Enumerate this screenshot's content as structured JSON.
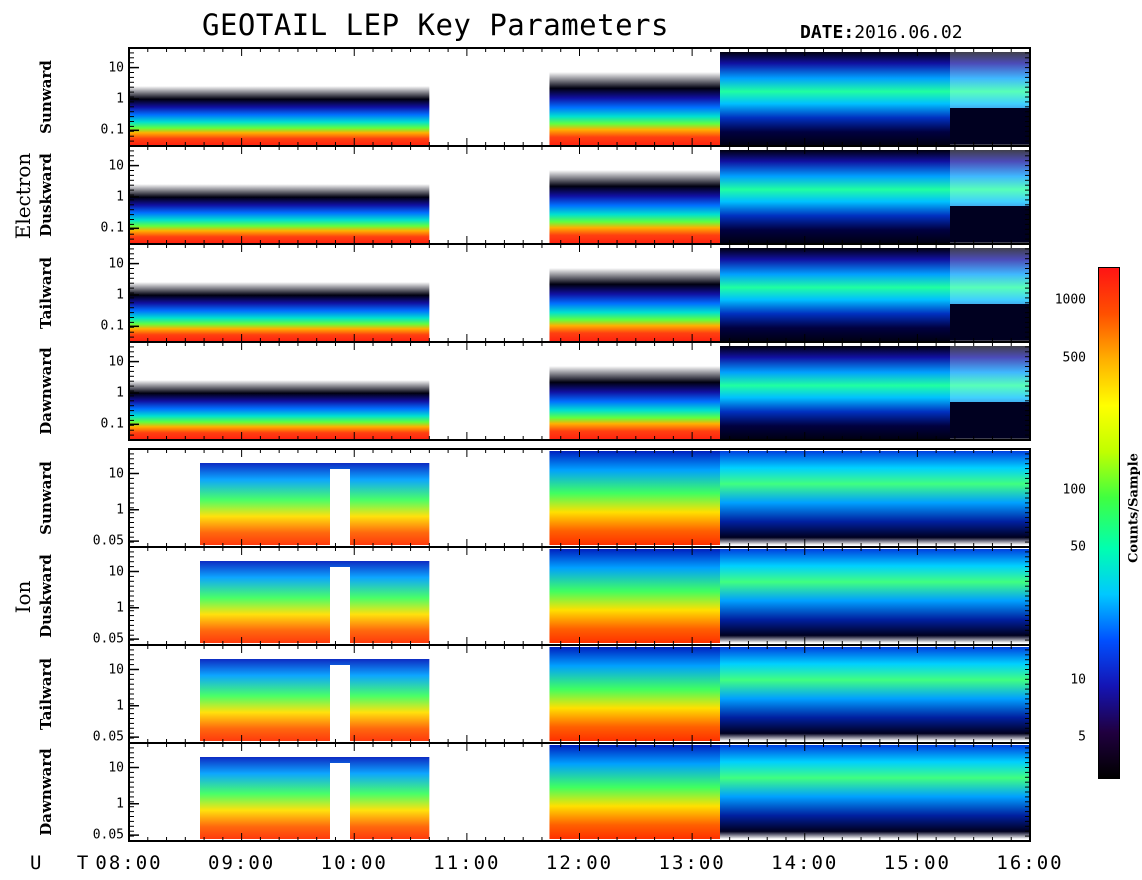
{
  "title": "GEOTAIL LEP Key Parameters",
  "date_label": "DATE:",
  "date_value": "2016.06.02",
  "ut_label": "U T",
  "groups": {
    "electron": "Electron",
    "ion": "Ion"
  },
  "colorbar": {
    "title": "Counts/Sample",
    "ticks": [
      "1000",
      "500",
      "100",
      "50",
      "10",
      "5"
    ],
    "colors": [
      "#000000",
      "#200040",
      "#1414b4",
      "#0050ff",
      "#00c8ff",
      "#00ffb0",
      "#40ff40",
      "#c0ff00",
      "#ffff00",
      "#ffb000",
      "#ff5000",
      "#ff1414"
    ]
  },
  "chart_data": {
    "type": "heatmap",
    "title": "GEOTAIL LEP Key Parameters",
    "xlabel": "U T",
    "x_ticks": [
      "08:00",
      "09:00",
      "10:00",
      "11:00",
      "12:00",
      "13:00",
      "14:00",
      "15:00",
      "16:00"
    ],
    "x_range": [
      "08:00",
      "16:00"
    ],
    "colorbar_label": "Counts/Sample",
    "colorbar_scale": "log",
    "colorbar_ticks": [
      5,
      10,
      50,
      100,
      500,
      1000
    ],
    "panels": [
      {
        "group": "Electron",
        "label": "Sunward",
        "yscale": "log",
        "yticks": [
          "10",
          "1",
          "0.1"
        ]
      },
      {
        "group": "Electron",
        "label": "Duskward",
        "yscale": "log",
        "yticks": [
          "10",
          "1",
          "0.1"
        ]
      },
      {
        "group": "Electron",
        "label": "Tailward",
        "yscale": "log",
        "yticks": [
          "10",
          "1",
          "0.1"
        ]
      },
      {
        "group": "Electron",
        "label": "Dawnward",
        "yscale": "log",
        "yticks": [
          "10",
          "1",
          "0.1"
        ]
      },
      {
        "group": "Ion",
        "label": "Sunward",
        "yscale": "log",
        "yticks": [
          "10",
          "1",
          "0.05"
        ]
      },
      {
        "group": "Ion",
        "label": "Duskward",
        "yscale": "log",
        "yticks": [
          "10",
          "1",
          "0.05"
        ]
      },
      {
        "group": "Ion",
        "label": "Tailward",
        "yscale": "log",
        "yticks": [
          "10",
          "1",
          "0.05"
        ]
      },
      {
        "group": "Ion",
        "label": "Dawnward",
        "yscale": "log",
        "yticks": [
          "10",
          "1",
          "0.05"
        ]
      }
    ],
    "data_gaps_ut": [
      [
        "10:40",
        "11:44"
      ]
    ]
  }
}
